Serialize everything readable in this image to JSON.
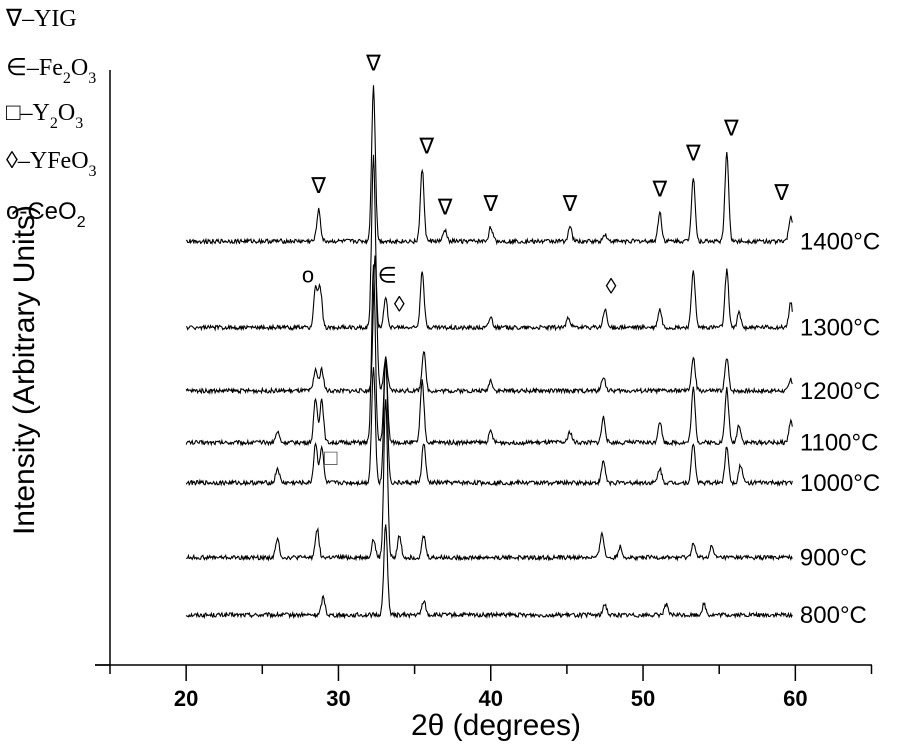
{
  "chart_data": {
    "type": "line",
    "title": "",
    "xlabel": "2θ (degrees)",
    "ylabel": "Intensity (Arbitrary Units)",
    "xlim": [
      15,
      65
    ],
    "x_ticks": [
      20,
      30,
      40,
      50,
      60
    ],
    "x_tick_labels": [
      "20",
      "30",
      "40",
      "50",
      "60"
    ],
    "y_ticks_labeled": false,
    "grid": false,
    "legend_position": "top-left",
    "legend": [
      {
        "symbol": "∇",
        "phase": "YIG",
        "label": "∇–YIG"
      },
      {
        "symbol": "∈",
        "phase": "Fe₂O₃",
        "label": "∈–Fe₂O₃"
      },
      {
        "symbol": "□",
        "phase": "Y₂O₃",
        "label": "□–Y₂O₃"
      },
      {
        "symbol": "◊",
        "phase": "YFeO₃",
        "label": "◊–YFeO₃"
      },
      {
        "symbol": "o",
        "phase": "CeO₂",
        "label": "o-CeO₂"
      }
    ],
    "series": [
      {
        "name": "800°C",
        "label": "800°C",
        "offset": 0.0,
        "peaks": [
          [
            29.0,
            0.5
          ],
          [
            33.1,
            2.5
          ],
          [
            35.6,
            0.4
          ],
          [
            47.5,
            0.3
          ],
          [
            51.5,
            0.3
          ],
          [
            54.0,
            0.3
          ]
        ]
      },
      {
        "name": "900°C",
        "label": "900°C",
        "offset": 1.0,
        "peaks": [
          [
            26.0,
            0.5
          ],
          [
            28.6,
            0.8
          ],
          [
            32.3,
            0.5
          ],
          [
            33.1,
            4.4
          ],
          [
            34.0,
            0.6
          ],
          [
            35.6,
            0.6
          ],
          [
            47.3,
            0.7
          ],
          [
            48.5,
            0.3
          ],
          [
            53.3,
            0.4
          ],
          [
            54.5,
            0.3
          ]
        ]
      },
      {
        "name": "1000°C",
        "label": "1000°C",
        "offset": 2.3,
        "peaks": [
          [
            26.0,
            0.4
          ],
          [
            28.5,
            1.1
          ],
          [
            28.9,
            1.0
          ],
          [
            32.3,
            3.2
          ],
          [
            33.1,
            3.5
          ],
          [
            35.6,
            1.1
          ],
          [
            47.4,
            0.6
          ],
          [
            51.1,
            0.4
          ],
          [
            53.3,
            1.1
          ],
          [
            55.5,
            1.0
          ],
          [
            56.4,
            0.5
          ]
        ]
      },
      {
        "name": "1100°C",
        "label": "1100°C",
        "offset": 3.0,
        "peaks": [
          [
            26.0,
            0.3
          ],
          [
            28.5,
            1.2
          ],
          [
            28.9,
            1.2
          ],
          [
            32.3,
            4.9
          ],
          [
            33.1,
            2.3
          ],
          [
            35.5,
            1.7
          ],
          [
            40.0,
            0.3
          ],
          [
            45.2,
            0.3
          ],
          [
            47.4,
            0.7
          ],
          [
            51.1,
            0.6
          ],
          [
            53.3,
            1.5
          ],
          [
            55.5,
            1.5
          ],
          [
            56.3,
            0.5
          ],
          [
            59.7,
            0.6
          ]
        ]
      },
      {
        "name": "1200°C",
        "label": "1200°C",
        "offset": 3.9,
        "peaks": [
          [
            28.5,
            0.6
          ],
          [
            28.9,
            0.6
          ],
          [
            32.4,
            3.7
          ],
          [
            33.1,
            0.9
          ],
          [
            35.6,
            1.1
          ],
          [
            40.0,
            0.3
          ],
          [
            47.4,
            0.4
          ],
          [
            53.3,
            0.9
          ],
          [
            55.5,
            0.9
          ],
          [
            59.7,
            0.3
          ]
        ]
      },
      {
        "name": "1300°C",
        "label": "1300°C",
        "offset": 5.0,
        "peaks": [
          [
            28.5,
            1.1
          ],
          [
            28.8,
            1.1
          ],
          [
            32.3,
            4.8
          ],
          [
            33.1,
            0.8
          ],
          [
            35.5,
            1.6
          ],
          [
            40.0,
            0.3
          ],
          [
            45.1,
            0.3
          ],
          [
            47.5,
            0.5
          ],
          [
            51.1,
            0.5
          ],
          [
            53.3,
            1.6
          ],
          [
            55.5,
            1.6
          ],
          [
            56.3,
            0.4
          ],
          [
            59.7,
            0.7
          ]
        ]
      },
      {
        "name": "1400°C",
        "label": "1400°C",
        "offset": 6.5,
        "peaks": [
          [
            28.7,
            0.9
          ],
          [
            32.3,
            4.3
          ],
          [
            35.5,
            2.0
          ],
          [
            37.0,
            0.3
          ],
          [
            40.0,
            0.4
          ],
          [
            45.2,
            0.4
          ],
          [
            47.5,
            0.2
          ],
          [
            51.1,
            0.8
          ],
          [
            53.3,
            1.8
          ],
          [
            55.5,
            2.5
          ],
          [
            59.7,
            0.7
          ]
        ]
      }
    ],
    "peak_markers": [
      {
        "symbol": "∇",
        "x": 28.7,
        "series": "1400°C"
      },
      {
        "symbol": "∇",
        "x": 32.3,
        "series": "1400°C"
      },
      {
        "symbol": "∇",
        "x": 35.8,
        "series": "1400°C"
      },
      {
        "symbol": "∇",
        "x": 37.0,
        "series": "1400°C"
      },
      {
        "symbol": "∇",
        "x": 40.0,
        "series": "1400°C"
      },
      {
        "symbol": "∇",
        "x": 45.2,
        "series": "1400°C"
      },
      {
        "symbol": "∇",
        "x": 51.1,
        "series": "1400°C"
      },
      {
        "symbol": "∇",
        "x": 53.3,
        "series": "1400°C"
      },
      {
        "symbol": "∇",
        "x": 55.8,
        "series": "1400°C"
      },
      {
        "symbol": "∇",
        "x": 59.1,
        "series": "1400°C"
      },
      {
        "symbol": "o",
        "x": 28.0,
        "series": "1300°C"
      },
      {
        "symbol": "∈",
        "x": 33.2,
        "series": "1300°C"
      },
      {
        "symbol": "◊",
        "x": 34.0,
        "series": "1300°C"
      },
      {
        "symbol": "◊",
        "x": 47.9,
        "series": "1300°C"
      },
      {
        "symbol": "□",
        "x": 29.5,
        "series": "1000°C"
      }
    ]
  }
}
